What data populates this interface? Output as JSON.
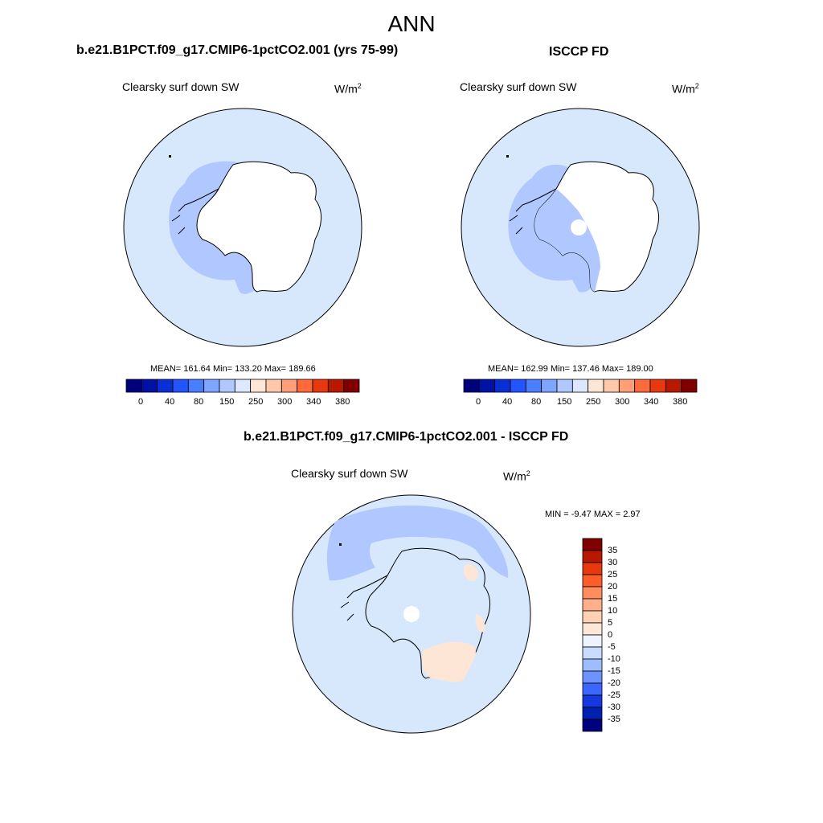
{
  "super_title": "ANN",
  "panels": [
    {
      "title": "b.e21.B1PCT.f09_g17.CMIP6-1pctCO2.001 (yrs 75-99)",
      "variable": "Clearsky surf down SW",
      "units_base": "W/m",
      "units_exp": "2",
      "stats": "MEAN= 161.64  Min= 133.20  Max= 189.66",
      "colorbar_ticks": [
        "0",
        "40",
        "80",
        "150",
        "250",
        "300",
        "340",
        "380"
      ]
    },
    {
      "title": "ISCCP FD",
      "variable": "Clearsky surf down SW",
      "units_base": "W/m",
      "units_exp": "2",
      "stats": "MEAN= 162.99  Min= 137.46  Max= 189.00",
      "colorbar_ticks": [
        "0",
        "40",
        "80",
        "150",
        "250",
        "300",
        "340",
        "380"
      ]
    },
    {
      "title": "b.e21.B1PCT.f09_g17.CMIP6-1pctCO2.001 - ISCCP FD",
      "variable": "Clearsky surf down SW",
      "units_base": "W/m",
      "units_exp": "2",
      "stats": "MIN =  -9.47 MAX =   2.97",
      "colorbar_ticks": [
        "35",
        "30",
        "25",
        "20",
        "15",
        "10",
        "5",
        "0",
        "-5",
        "-10",
        "-15",
        "-20",
        "-25",
        "-30",
        "-35"
      ]
    }
  ],
  "colors": {
    "abs_scale": [
      "#00007f",
      "#0012a6",
      "#0a2fd6",
      "#2255ff",
      "#4a7dff",
      "#7fa6ff",
      "#b0c8ff",
      "#dbe8ff",
      "#fde6d6",
      "#ffc8aa",
      "#ff9f78",
      "#ff6a3d",
      "#e8380d",
      "#b81800",
      "#800000"
    ],
    "diff_scale": [
      "#800000",
      "#b81800",
      "#e8380d",
      "#ff5d2a",
      "#ff8d5e",
      "#ffb08a",
      "#ffd0b4",
      "#fde8d8",
      "#eef4ff",
      "#c9dbff",
      "#9ebdff",
      "#6c93ff",
      "#3d66ff",
      "#1538e0",
      "#0020b0",
      "#00007f"
    ],
    "ocean_fill": "#d7e8fd",
    "mid_blue": "#b0c8ff",
    "light_orange": "#fde6d6",
    "white": "#ffffff"
  }
}
